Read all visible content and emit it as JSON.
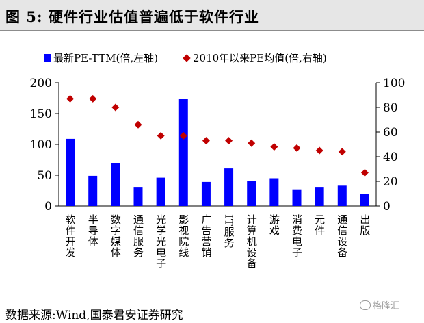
{
  "title": "图 5:  硬件行业估值普遍低于软件行业",
  "source": "数据来源:Wind,国泰君安证券研究",
  "watermark": "格隆汇",
  "chart_data": {
    "type": "bar",
    "categories": [
      "软件开发",
      "半导体",
      "数字媒体",
      "通信服务",
      "光学光电子",
      "影视院线",
      "广告营销",
      "IT服务",
      "计算机设备",
      "游戏",
      "消费电子",
      "元件",
      "通信设备",
      "出版"
    ],
    "series": [
      {
        "name": "最新PE-TTM(倍,左轴)",
        "type": "bar",
        "axis": "left",
        "color": "#0000ff",
        "values": [
          109,
          49,
          70,
          31,
          46,
          174,
          39,
          61,
          41,
          45,
          27,
          31,
          33,
          20
        ]
      },
      {
        "name": "2010年以来PE均值(倍,右轴)",
        "type": "scatter",
        "axis": "right",
        "color": "#c00000",
        "values": [
          87,
          87,
          80,
          66,
          57,
          57,
          53,
          53,
          51,
          48,
          47,
          45,
          44,
          27
        ]
      }
    ],
    "y_left": {
      "min": 0,
      "max": 200,
      "ticks": [
        0,
        50,
        100,
        150,
        200
      ]
    },
    "y_right": {
      "min": 0,
      "max": 100,
      "ticks": [
        0,
        20,
        40,
        60,
        80,
        100
      ]
    },
    "legend_position": "top",
    "grid": false
  }
}
